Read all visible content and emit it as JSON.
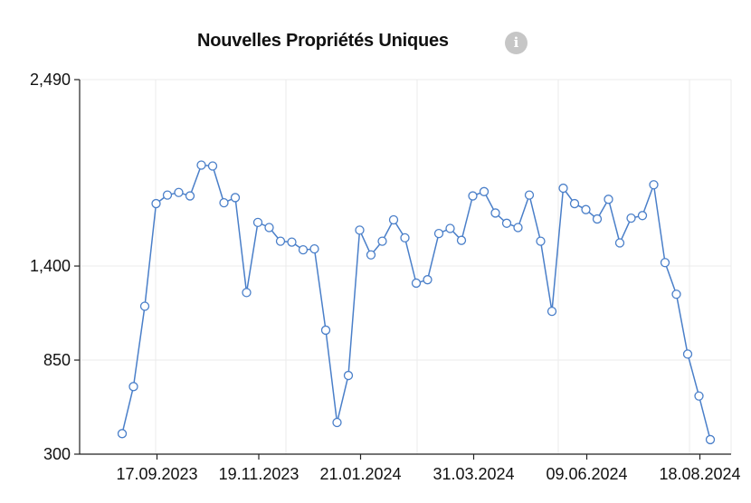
{
  "chart_data": {
    "type": "line",
    "title": "Nouvelles Propriétés Uniques",
    "xlabel": "",
    "ylabel": "",
    "y_ticks": [
      "2,490",
      "1,400",
      "850",
      "300"
    ],
    "y_tick_values": [
      2490,
      1400,
      850,
      300
    ],
    "ylim": [
      300,
      2490
    ],
    "x_ticks": [
      "17.09.2023",
      "19.11.2023",
      "21.01.2024",
      "31.03.2024",
      "09.06.2024",
      "18.08.2024"
    ],
    "x_tick_index": [
      3,
      12,
      21,
      31,
      41,
      51
    ],
    "grid": true,
    "line_color": "#4a7fc9",
    "values": [
      420,
      695,
      1165,
      1765,
      1815,
      1830,
      1810,
      1990,
      1985,
      1770,
      1800,
      1245,
      1655,
      1625,
      1545,
      1540,
      1495,
      1500,
      1025,
      485,
      760,
      1610,
      1465,
      1545,
      1670,
      1565,
      1300,
      1320,
      1590,
      1620,
      1550,
      1810,
      1835,
      1710,
      1650,
      1625,
      1815,
      1545,
      1135,
      1855,
      1765,
      1730,
      1675,
      1790,
      1535,
      1680,
      1695,
      1875,
      1420,
      1235,
      885,
      640,
      385
    ]
  },
  "header": {
    "info_icon": "info-icon",
    "info_glyph": "i"
  }
}
